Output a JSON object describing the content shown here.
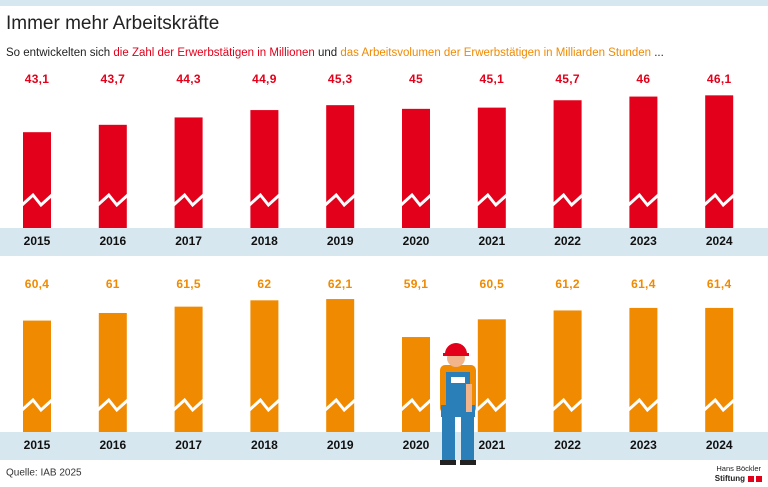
{
  "header": {
    "title": "Immer mehr Arbeitskräfte",
    "subtitle": [
      "So entwickelten sich",
      "die Zahl der Erwerbstätigen in Millionen",
      "und",
      "das Arbeitsvolumen der Erwerbstätigen in Milliarden Stunden",
      "..."
    ]
  },
  "source": "Quelle: IAB 2025",
  "logo": [
    "Hans Böckler",
    "Stiftung"
  ],
  "chart_data": [
    {
      "type": "bar",
      "color": "#e2001a",
      "categories": [
        "2015",
        "2016",
        "2017",
        "2018",
        "2019",
        "2020",
        "2021",
        "2022",
        "2023",
        "2024"
      ],
      "values": [
        43.1,
        43.7,
        44.3,
        44.9,
        45.3,
        45,
        45.1,
        45.7,
        46,
        46.1
      ],
      "value_labels": [
        "43,1",
        "43,7",
        "44,3",
        "44,9",
        "45,3",
        "45",
        "45,1",
        "45,7",
        "46",
        "46,1"
      ],
      "ylim": [
        35.3,
        48
      ]
    },
    {
      "type": "bar",
      "color": "#f08a00",
      "categories": [
        "2015",
        "2016",
        "2017",
        "2018",
        "2019",
        "2020",
        "2021",
        "2022",
        "2023",
        "2024"
      ],
      "values": [
        60.4,
        61,
        61.5,
        62,
        62.1,
        59.1,
        60.5,
        61.2,
        61.4,
        61.4
      ],
      "value_labels": [
        "60,4",
        "61",
        "61,5",
        "62",
        "62,1",
        "59,1",
        "60,5",
        "61,2",
        "61,4",
        "61,4"
      ],
      "ylim": [
        51.6,
        64
      ]
    }
  ]
}
